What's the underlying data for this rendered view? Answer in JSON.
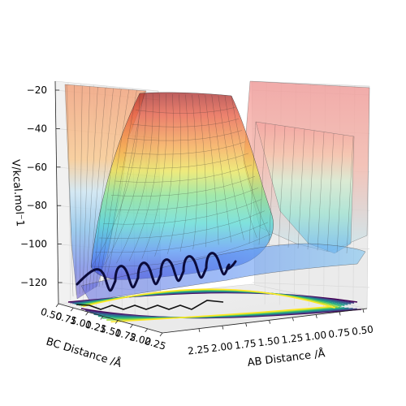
{
  "chart_data": {
    "type": "surface3d",
    "title": "",
    "zlabel": "V/kcal.mol⁻1",
    "xlabel": "AB Distance /Å",
    "ylabel": "BC Distance /Å",
    "z_ticks": [
      "−120",
      "−100",
      "−80",
      "−60",
      "−40",
      "−20"
    ],
    "x_ticks": [
      "2.25",
      "2.00",
      "1.75",
      "1.50",
      "1.25",
      "1.00",
      "0.75",
      "0.50"
    ],
    "y_ticks": [
      "0.50",
      "0.75",
      "1.00",
      "1.25",
      "1.50",
      "1.75",
      "2.00",
      "2.25"
    ],
    "zlim": [
      -135,
      -20
    ],
    "xlim": [
      0.5,
      2.3
    ],
    "ylim": [
      0.5,
      2.3
    ],
    "colormap_surface": "jet",
    "colormap_contour": "viridis",
    "grid": true,
    "surface": {
      "barrier_height": -40,
      "asymptote_reactants": -103,
      "asymptote_products": -103,
      "well_minimum": -130,
      "repulsive_wall": -20
    },
    "trajectory": {
      "color": "#0b0b3b",
      "start_x": 2.2,
      "start_y": 0.6,
      "oscillations": 6
    }
  }
}
